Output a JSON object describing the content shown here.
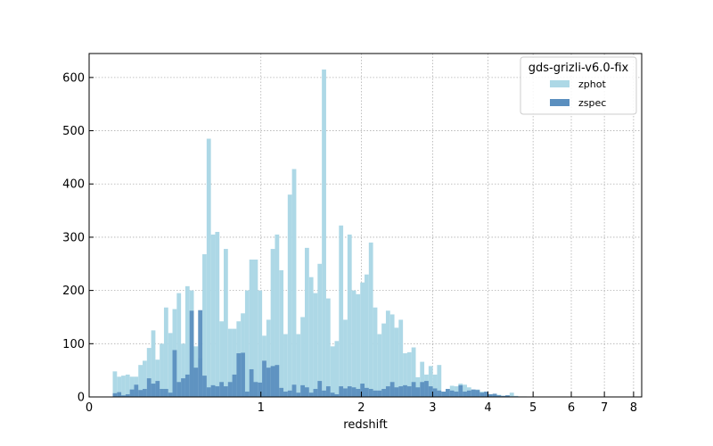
{
  "chart_data": {
    "type": "bar",
    "xlabel": "redshift",
    "ylabel": "",
    "x_scale": "log(1+z)",
    "xlim": [
      0,
      8.3
    ],
    "ylim": [
      0,
      645
    ],
    "grid": true,
    "legend_position": "top-right",
    "legend_title": "gds-grizli-v6.0-fix",
    "x_ticks": [
      {
        "value": 0,
        "label": "0"
      },
      {
        "value": 1,
        "label": "1"
      },
      {
        "value": 2,
        "label": "2"
      },
      {
        "value": 3,
        "label": "3"
      },
      {
        "value": 4,
        "label": "4"
      },
      {
        "value": 5,
        "label": "5"
      },
      {
        "value": 6,
        "label": "6"
      },
      {
        "value": 7,
        "label": "7"
      },
      {
        "value": 8,
        "label": "8"
      }
    ],
    "y_ticks": [
      {
        "value": 0,
        "label": "0"
      },
      {
        "value": 100,
        "label": "100"
      },
      {
        "value": 200,
        "label": "200"
      },
      {
        "value": 300,
        "label": "300"
      },
      {
        "value": 400,
        "label": "400"
      },
      {
        "value": 500,
        "label": "500"
      },
      {
        "value": 600,
        "label": "600"
      }
    ],
    "bin_log1pz_start": 0.0414,
    "bin_log1pz_width": 0.00748,
    "series": [
      {
        "name": "zphot",
        "color": "#add8e6",
        "values": [
          48,
          38,
          40,
          42,
          38,
          38,
          60,
          68,
          92,
          125,
          70,
          100,
          168,
          120,
          165,
          195,
          100,
          208,
          200,
          95,
          73,
          268,
          485,
          305,
          310,
          142,
          278,
          128,
          128,
          142,
          157,
          200,
          258,
          258,
          200,
          115,
          145,
          278,
          305,
          238,
          118,
          380,
          428,
          118,
          150,
          280,
          225,
          195,
          250,
          615,
          185,
          95,
          105,
          322,
          145,
          305,
          200,
          193,
          215,
          230,
          290,
          168,
          118,
          138,
          162,
          155,
          130,
          145,
          82,
          84,
          93,
          37,
          66,
          42,
          58,
          42,
          60,
          10,
          15,
          21,
          20,
          25,
          23,
          18,
          12,
          14,
          10,
          8,
          5,
          3,
          4,
          2,
          3,
          8,
          2,
          1,
          1,
          0
        ],
        "values_approximate": true
      },
      {
        "name": "zspec",
        "color": "#5b8fbf",
        "values": [
          7,
          9,
          3,
          5,
          14,
          23,
          13,
          15,
          35,
          25,
          30,
          15,
          15,
          8,
          88,
          28,
          35,
          42,
          162,
          55,
          163,
          40,
          18,
          22,
          20,
          28,
          20,
          28,
          42,
          82,
          83,
          10,
          52,
          28,
          27,
          68,
          55,
          58,
          60,
          17,
          10,
          12,
          23,
          8,
          22,
          18,
          8,
          15,
          30,
          12,
          20,
          8,
          5,
          20,
          16,
          20,
          18,
          15,
          25,
          17,
          15,
          12,
          12,
          15,
          20,
          28,
          18,
          20,
          22,
          20,
          28,
          18,
          28,
          30,
          20,
          16,
          12,
          10,
          15,
          12,
          10,
          22,
          10,
          12,
          14,
          13,
          8,
          10,
          5,
          6,
          3,
          2,
          3,
          1,
          1,
          0,
          0,
          0
        ],
        "values_approximate": true
      }
    ]
  }
}
